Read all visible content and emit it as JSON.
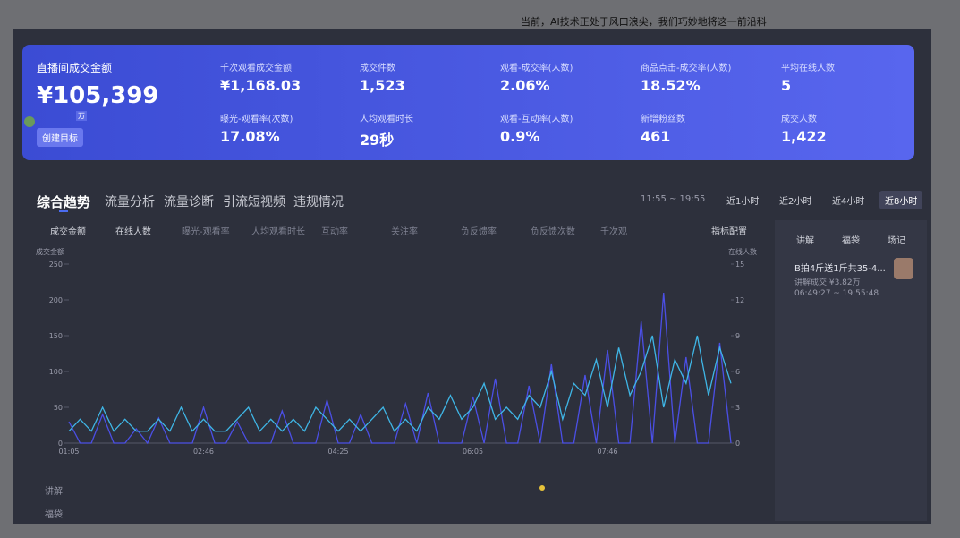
{
  "caption": "当前，AI技术正处于风口浪尖，我们巧妙地将这一前沿科",
  "card": {
    "title": "直播间成交金额",
    "amount": "¥105,399",
    "unit": "万",
    "button": "创建目标",
    "metrics": [
      {
        "label": "千次观看成交金额",
        "value": "¥1,168.03"
      },
      {
        "label": "成交件数",
        "value": "1,523"
      },
      {
        "label": "观看-成交率(人数)",
        "value": "2.06%"
      },
      {
        "label": "商品点击-成交率(人数)",
        "value": "18.52%"
      },
      {
        "label": "平均在线人数",
        "value": "5"
      },
      {
        "label": "曝光-观看率(次数)",
        "value": "17.08%"
      },
      {
        "label": "人均观看时长",
        "value": "29秒"
      },
      {
        "label": "观看-互动率(人数)",
        "value": "0.9%"
      },
      {
        "label": "新增粉丝数",
        "value": "461"
      },
      {
        "label": "成交人数",
        "value": "1,422"
      }
    ]
  },
  "tabs": [
    "综合趋势",
    "流量分析",
    "流量诊断",
    "引流短视频",
    "违规情况"
  ],
  "time_range": "11:55 ~ 19:55",
  "ranges": [
    "近1小时",
    "近2小时",
    "近4小时",
    "近8小时"
  ],
  "inactive_metrics": [
    "曝光-观看率",
    "人均观看时长",
    "互动率",
    "关注率",
    "负反馈率",
    "负反馈次数",
    "千次观"
  ],
  "config_button": "指标配置",
  "chart_data": {
    "type": "line",
    "categories": [
      "01:05",
      null,
      null,
      null,
      null,
      null,
      null,
      null,
      null,
      null,
      null,
      null,
      "02:46",
      null,
      null,
      null,
      null,
      null,
      null,
      null,
      null,
      null,
      null,
      null,
      "04:25",
      null,
      null,
      null,
      null,
      null,
      null,
      null,
      null,
      null,
      null,
      null,
      "06:05",
      null,
      null,
      null,
      null,
      null,
      null,
      null,
      null,
      null,
      null,
      null,
      "07:46",
      null,
      null,
      null,
      null,
      null,
      null,
      null,
      null,
      null,
      null,
      null
    ],
    "ylim": [
      0,
      250
    ],
    "yticks": [
      0,
      50,
      100,
      150,
      200,
      250
    ],
    "y2lim": [
      0,
      15
    ],
    "y2ticks": [
      0,
      3,
      6,
      9,
      12,
      15
    ],
    "series": [
      {
        "name": "成交金额",
        "color": "#4b4fe6",
        "values": [
          30,
          0,
          0,
          40,
          0,
          0,
          20,
          0,
          35,
          0,
          0,
          0,
          50,
          0,
          0,
          30,
          0,
          0,
          0,
          45,
          0,
          0,
          0,
          60,
          0,
          0,
          40,
          0,
          0,
          0,
          55,
          0,
          70,
          0,
          0,
          0,
          65,
          0,
          90,
          0,
          0,
          80,
          0,
          110,
          0,
          0,
          95,
          0,
          130,
          0,
          0,
          170,
          0,
          210,
          0,
          120,
          0,
          0,
          140,
          0
        ]
      },
      {
        "name": "在线人数",
        "color": "#3fb6e6",
        "axis": "y2",
        "values": [
          1,
          2,
          1,
          3,
          1,
          2,
          1,
          1,
          2,
          1,
          3,
          1,
          2,
          1,
          1,
          2,
          3,
          1,
          2,
          1,
          2,
          1,
          3,
          2,
          1,
          2,
          1,
          2,
          3,
          1,
          2,
          1,
          3,
          2,
          4,
          2,
          3,
          5,
          2,
          3,
          2,
          4,
          3,
          6,
          2,
          5,
          4,
          7,
          3,
          8,
          4,
          6,
          9,
          3,
          7,
          5,
          9,
          4,
          8,
          5
        ]
      }
    ]
  },
  "side_panel": {
    "tabs": [
      "讲解",
      "福袋",
      "场记"
    ],
    "item": {
      "title": "B拍4斤送1斤共35-4...",
      "sales": "讲解成交 ¥3.82万",
      "time": "06:49:27 ~ 19:55:48"
    }
  },
  "bottom_rows": [
    "讲解",
    "福袋"
  ]
}
